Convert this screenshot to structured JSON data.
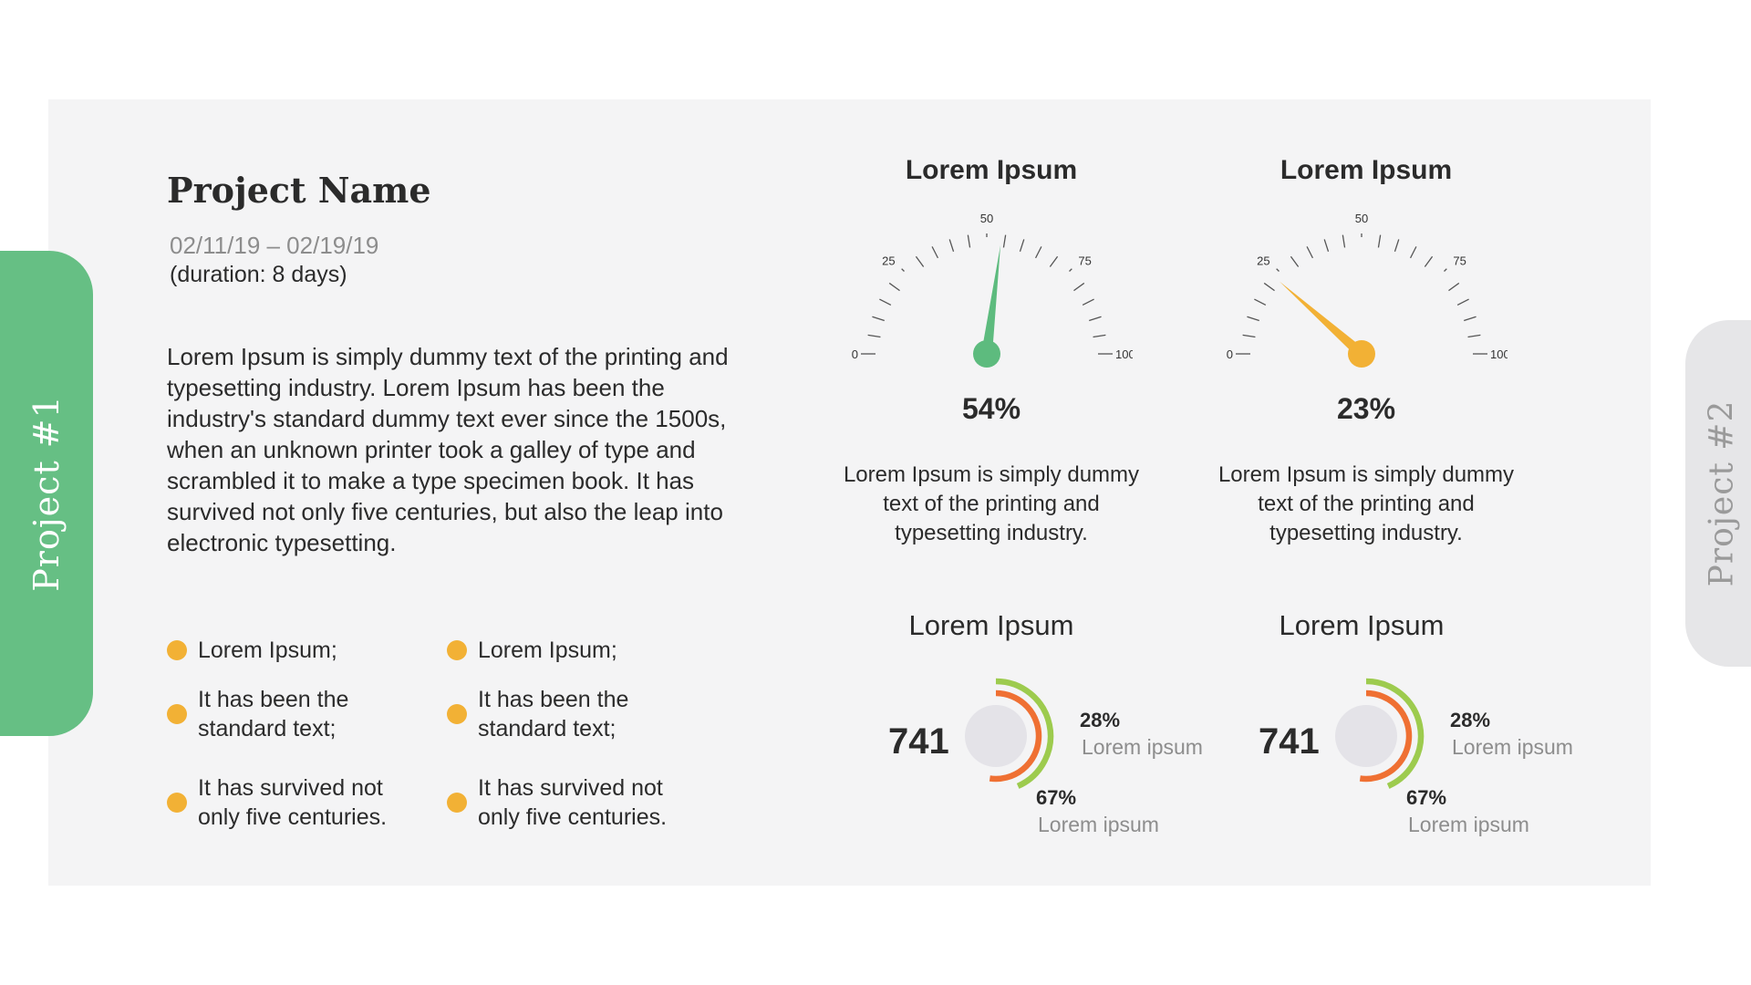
{
  "tabs": {
    "left": "Project  #1",
    "right": "Project  #2"
  },
  "project": {
    "title": "Project Name",
    "dates": "02/11/19 – 02/19/19",
    "duration": "(duration: 8 days)",
    "description": "Lorem Ipsum is simply dummy text of the printing and typesetting industry. Lorem Ipsum has been the industry's standard dummy text ever since the 1500s, when an unknown printer took a galley of type and scrambled it to make a type specimen book. It has survived not only five centuries, but also the leap into electronic typesetting."
  },
  "bullets": {
    "column1": [
      "Lorem Ipsum;",
      "It has been the standard text;",
      "It has survived not only five centuries."
    ],
    "column2": [
      "Lorem Ipsum;",
      "It has been the standard text;",
      "It has survived not only five centuries."
    ]
  },
  "gauges": [
    {
      "title": "Lorem Ipsum",
      "value": 54,
      "value_label": "54%",
      "color": "#5dbb7e",
      "description": "Lorem Ipsum is simply dummy text of the printing and typesetting industry.",
      "ticks": [
        "0",
        "25",
        "50",
        "75",
        "100"
      ]
    },
    {
      "title": "Lorem Ipsum",
      "value": 23,
      "value_label": "23%",
      "color": "#f2b135",
      "description": "Lorem Ipsum is simply dummy text of the printing and typesetting industry.",
      "ticks": [
        "0",
        "25",
        "50",
        "75",
        "100"
      ]
    }
  ],
  "donuts": [
    {
      "title": "Lorem Ipsum",
      "total": "741",
      "outer_pct": 28,
      "outer_label": "28%",
      "outer_caption": "Lorem ipsum",
      "inner_pct": 67,
      "inner_label": "67%",
      "inner_caption": "Lorem ipsum"
    },
    {
      "title": "Lorem Ipsum",
      "total": "741",
      "outer_pct": 28,
      "outer_label": "28%",
      "outer_caption": "Lorem ipsum",
      "inner_pct": 67,
      "inner_label": "67%",
      "inner_caption": "Lorem ipsum"
    }
  ],
  "colors": {
    "accent_green": "#66bf84",
    "accent_orange": "#f2b135",
    "ring_outer": "#9dcb4e",
    "ring_inner": "#ef7033",
    "center_circle": "#e4e3e8"
  }
}
